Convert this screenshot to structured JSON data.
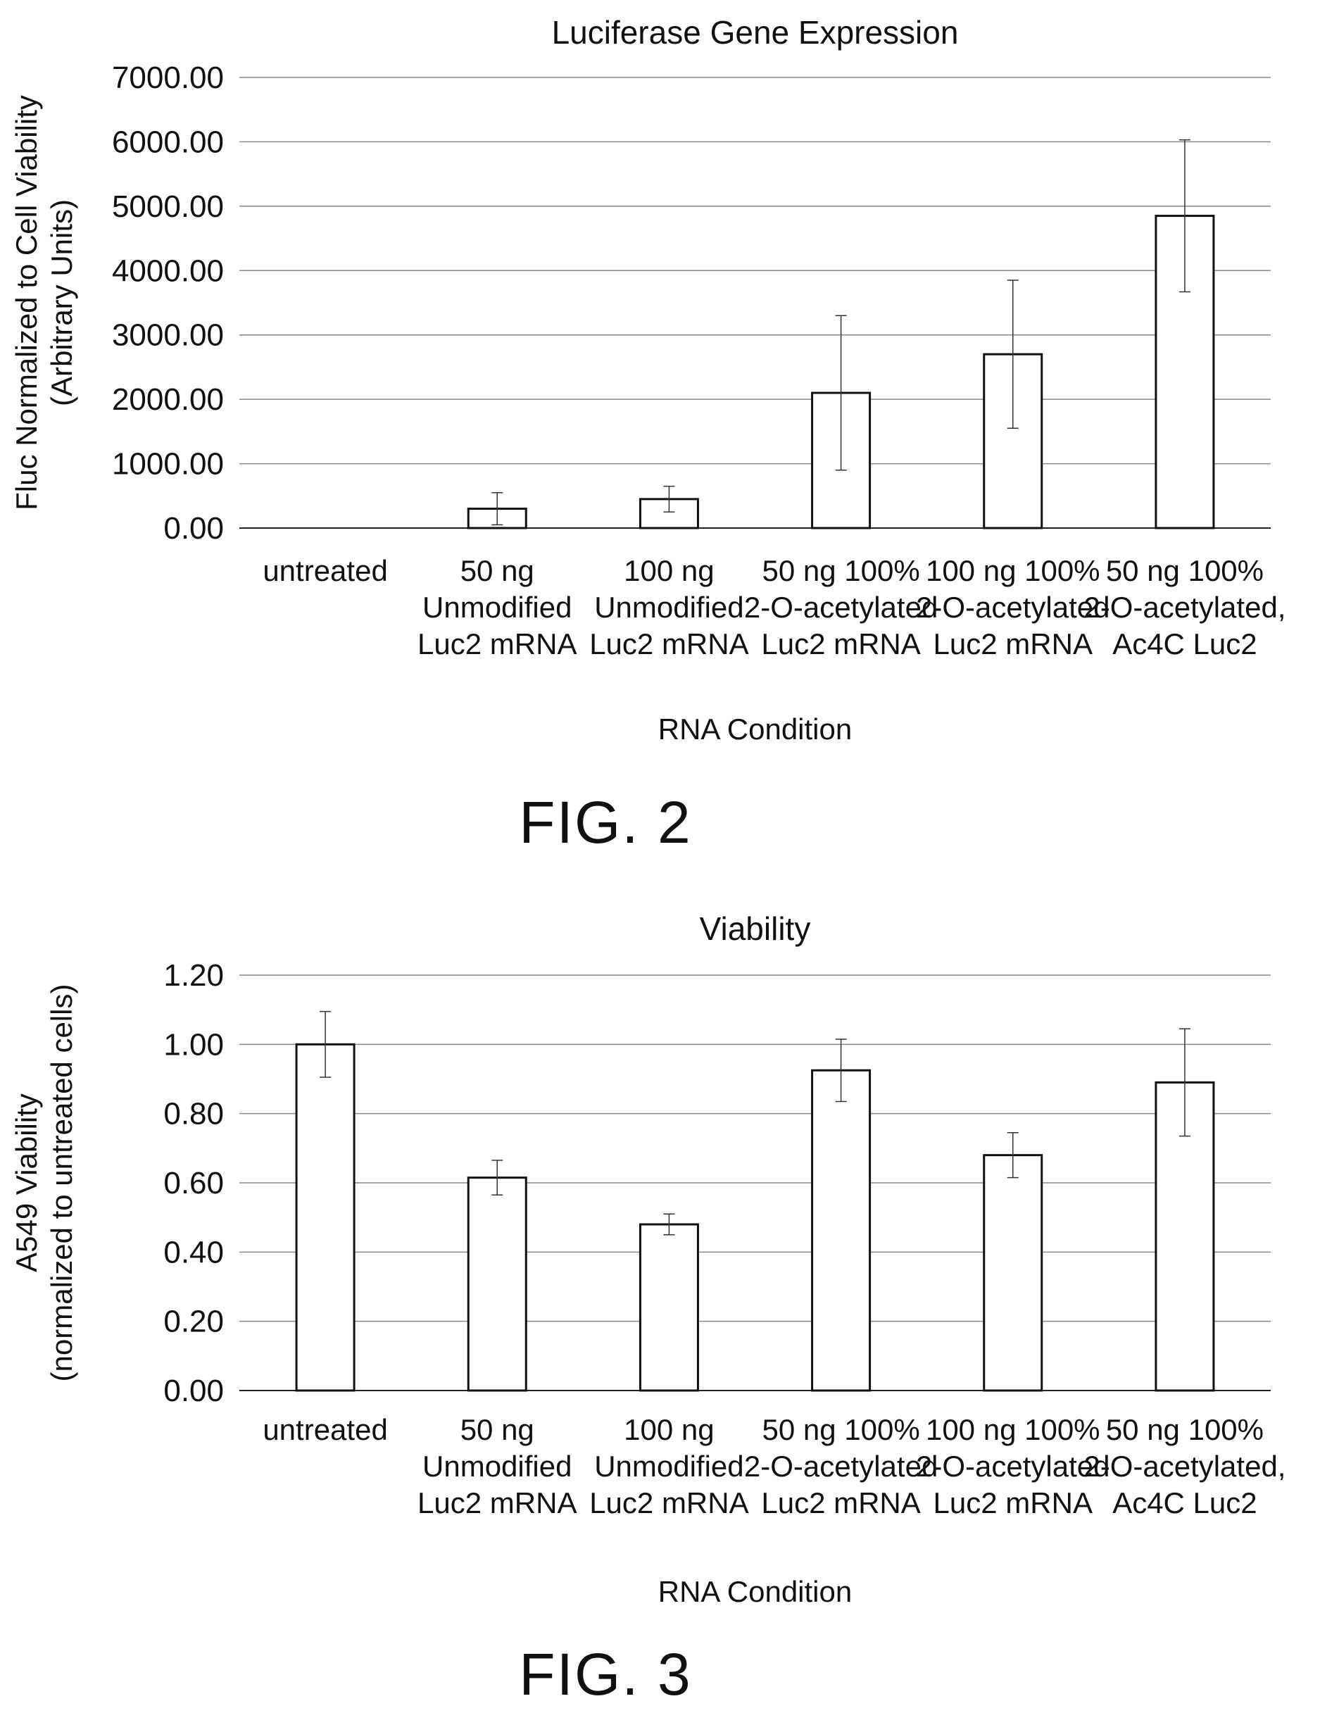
{
  "figures": [
    {
      "label": "FIG. 2",
      "chart_data": {
        "type": "bar",
        "title": "Luciferase Gene Expression",
        "xlabel": "RNA Condition",
        "ylabel_lines": [
          "Fluc Normalized to Cell Viability",
          "(Arbitrary Units)"
        ],
        "ylim": [
          0,
          7000
        ],
        "yticks": [
          0,
          1000,
          2000,
          3000,
          4000,
          5000,
          6000,
          7000
        ],
        "ytick_labels": [
          "0.00",
          "1000.00",
          "2000.00",
          "3000.00",
          "4000.00",
          "5000.00",
          "6000.00",
          "7000.00"
        ],
        "grid": true,
        "legend": "none",
        "categories": [
          [
            "untreated"
          ],
          [
            "50 ng",
            "Unmodified",
            "Luc2 mRNA"
          ],
          [
            "100 ng",
            "Unmodified",
            "Luc2 mRNA"
          ],
          [
            "50 ng 100%",
            "2-O-acetylated",
            "Luc2 mRNA"
          ],
          [
            "100 ng 100%",
            "2-O-acetylated",
            "Luc2 mRNA"
          ],
          [
            "50 ng 100%",
            "2-O-acetylated,",
            "Ac4C Luc2"
          ]
        ],
        "values": [
          0,
          300,
          450,
          2100,
          2700,
          4850
        ],
        "errors": [
          0,
          250,
          200,
          1200,
          1150,
          1180
        ]
      }
    },
    {
      "label": "FIG. 3",
      "chart_data": {
        "type": "bar",
        "title": "Viability",
        "xlabel": "RNA Condition",
        "ylabel_lines": [
          "A549 Viability",
          "(normalized to untreated cells)"
        ],
        "ylim": [
          0,
          1.2
        ],
        "yticks": [
          0,
          0.2,
          0.4,
          0.6,
          0.8,
          1.0,
          1.2
        ],
        "ytick_labels": [
          "0.00",
          "0.20",
          "0.40",
          "0.60",
          "0.80",
          "1.00",
          "1.20"
        ],
        "grid": true,
        "legend": "none",
        "categories": [
          [
            "untreated"
          ],
          [
            "50 ng",
            "Unmodified",
            "Luc2 mRNA"
          ],
          [
            "100 ng",
            "Unmodified",
            "Luc2 mRNA"
          ],
          [
            "50 ng 100%",
            "2-O-acetylated",
            "Luc2 mRNA"
          ],
          [
            "100 ng 100%",
            "2-O-acetylated",
            "Luc2 mRNA"
          ],
          [
            "50 ng 100%",
            "2-O-acetylated,",
            "Ac4C Luc2"
          ]
        ],
        "values": [
          1.0,
          0.615,
          0.48,
          0.925,
          0.68,
          0.89
        ],
        "errors": [
          0.095,
          0.05,
          0.03,
          0.09,
          0.065,
          0.155
        ]
      }
    }
  ]
}
